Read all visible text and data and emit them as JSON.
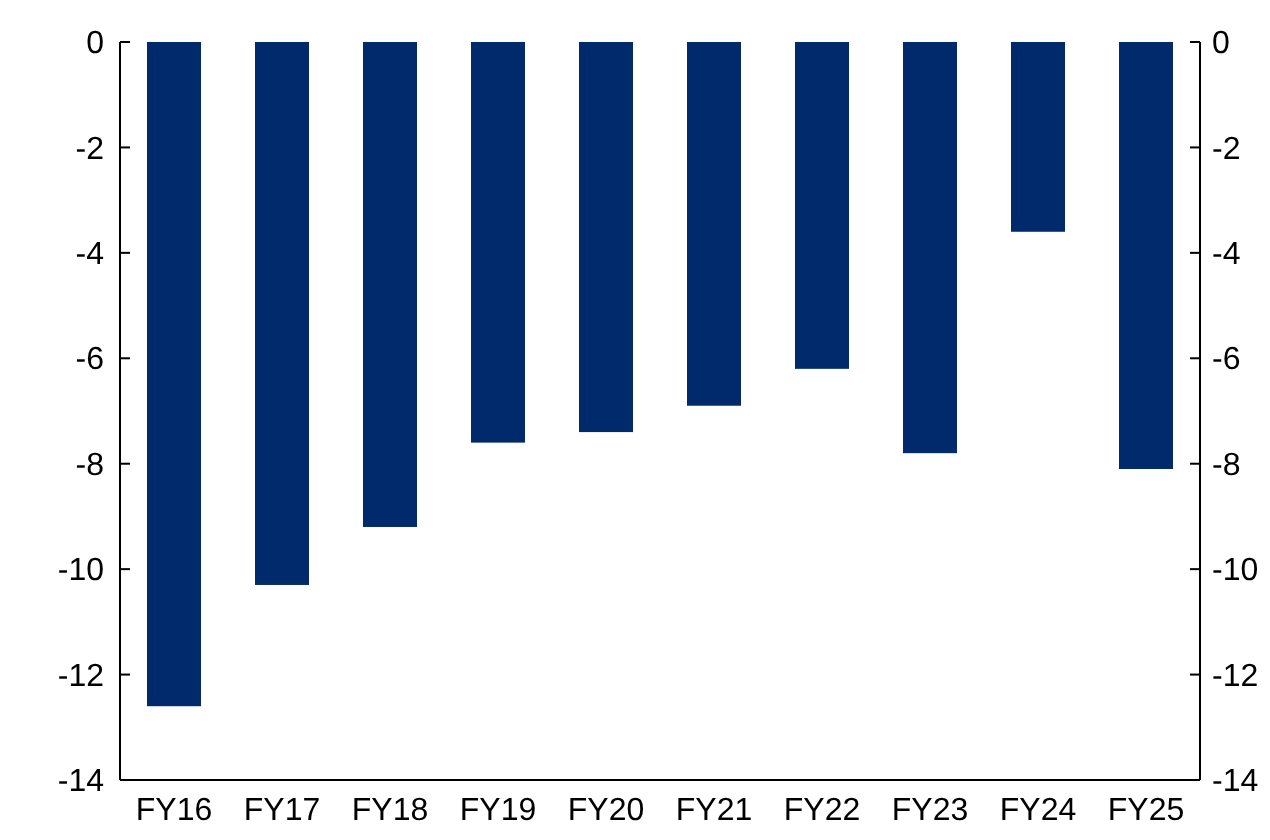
{
  "chart_data": {
    "type": "bar",
    "categories": [
      "FY16",
      "FY17",
      "FY18",
      "FY19",
      "FY20",
      "FY21",
      "FY22",
      "FY23",
      "FY24",
      "FY25"
    ],
    "values": [
      -12.6,
      -10.3,
      -9.2,
      -7.6,
      -7.4,
      -6.9,
      -6.2,
      -7.8,
      -3.6,
      -8.1
    ],
    "color": "#002a6c",
    "ylim": [
      -14,
      0
    ],
    "yticks": [
      0,
      -2,
      -4,
      -6,
      -8,
      -10,
      -12,
      -14
    ],
    "y2lim": [
      -14,
      0
    ],
    "y2ticks": [
      0,
      -2,
      -4,
      -6,
      -8,
      -10,
      -12,
      -14
    ],
    "grid": false
  }
}
